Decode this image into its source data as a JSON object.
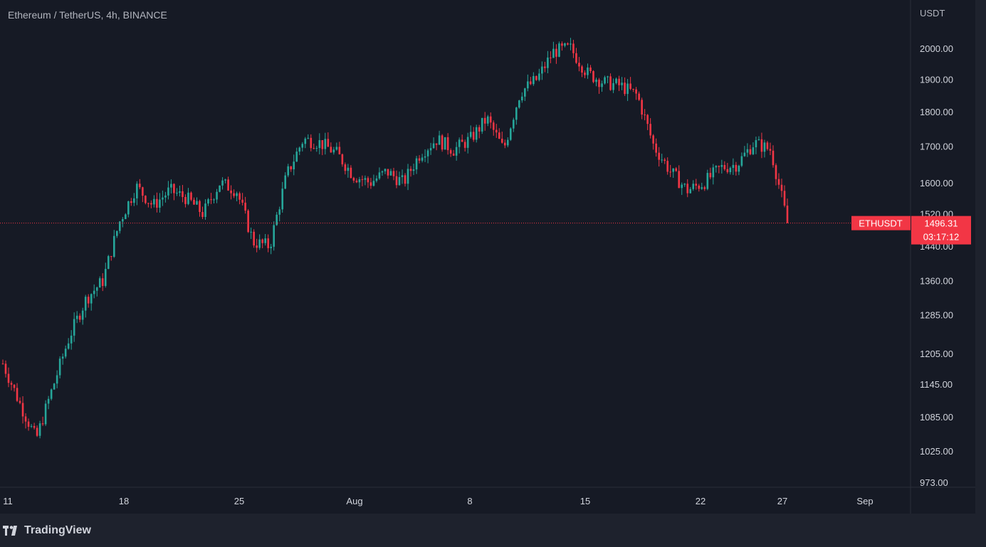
{
  "header": {
    "title": "Ethereum / TetherUS, 4h, BINANCE",
    "price_unit": "USDT"
  },
  "footer": {
    "brand": "TradingView"
  },
  "colors": {
    "up": "#26a69a",
    "down": "#f23645",
    "last_price": "#f23645",
    "background": "#161a25",
    "axis_text": "#d1d4dc"
  },
  "chart_data": {
    "type": "candlestick",
    "title": "Ethereum / TetherUS, 4h, BINANCE",
    "symbol": "ETHUSDT",
    "last_price": 1496.31,
    "countdown": "03:17:12",
    "price_ticks": [
      973,
      1025,
      1085,
      1145,
      1205,
      1285,
      1360,
      1440,
      1520,
      1600,
      1700,
      1800,
      1900,
      2000
    ],
    "price_tick_labels": [
      "973.00",
      "1025.00",
      "1085.00",
      "1145.00",
      "1205.00",
      "1285.00",
      "1360.00",
      "1440.00",
      "1520.00",
      "1600.00",
      "1700.00",
      "1800.00",
      "1900.00",
      "2000.00"
    ],
    "time_labels": [
      "11",
      "18",
      "25",
      "Aug",
      "8",
      "15",
      "22",
      "27",
      "Sep"
    ],
    "price_scale": "log",
    "ylim": [
      973,
      2030
    ],
    "approx_path_note_free": true,
    "close_path": [
      {
        "t": "11",
        "price": 1185
      },
      {
        "t": "12",
        "price": 1110
      },
      {
        "t": "13",
        "price": 1045
      },
      {
        "t": "14",
        "price": 1140
      },
      {
        "t": "15",
        "price": 1240
      },
      {
        "t": "16",
        "price": 1320
      },
      {
        "t": "17",
        "price": 1360
      },
      {
        "t": "18",
        "price": 1500
      },
      {
        "t": "19",
        "price": 1590
      },
      {
        "t": "20",
        "price": 1540
      },
      {
        "t": "21",
        "price": 1580
      },
      {
        "t": "22",
        "price": 1560
      },
      {
        "t": "23",
        "price": 1520
      },
      {
        "t": "24",
        "price": 1600
      },
      {
        "t": "25",
        "price": 1580
      },
      {
        "t": "26",
        "price": 1450
      },
      {
        "t": "27",
        "price": 1440
      },
      {
        "t": "28",
        "price": 1620
      },
      {
        "t": "29",
        "price": 1720
      },
      {
        "t": "30",
        "price": 1710
      },
      {
        "t": "31",
        "price": 1680
      },
      {
        "t": "Aug",
        "price": 1620
      },
      {
        "t": "2",
        "price": 1600
      },
      {
        "t": "3",
        "price": 1630
      },
      {
        "t": "4",
        "price": 1600
      },
      {
        "t": "5",
        "price": 1680
      },
      {
        "t": "6",
        "price": 1720
      },
      {
        "t": "7",
        "price": 1690
      },
      {
        "t": "8",
        "price": 1720
      },
      {
        "t": "9",
        "price": 1780
      },
      {
        "t": "10",
        "price": 1690
      },
      {
        "t": "11",
        "price": 1860
      },
      {
        "t": "12",
        "price": 1900
      },
      {
        "t": "13",
        "price": 1990
      },
      {
        "t": "14",
        "price": 2000
      },
      {
        "t": "15",
        "price": 1920
      },
      {
        "t": "16",
        "price": 1890
      },
      {
        "t": "17",
        "price": 1880
      },
      {
        "t": "18",
        "price": 1850
      },
      {
        "t": "19",
        "price": 1700
      },
      {
        "t": "20",
        "price": 1630
      },
      {
        "t": "21",
        "price": 1580
      },
      {
        "t": "22",
        "price": 1600
      },
      {
        "t": "23",
        "price": 1640
      },
      {
        "t": "24",
        "price": 1650
      },
      {
        "t": "25",
        "price": 1710
      },
      {
        "t": "26",
        "price": 1690
      },
      {
        "t": "27",
        "price": 1496
      }
    ]
  }
}
